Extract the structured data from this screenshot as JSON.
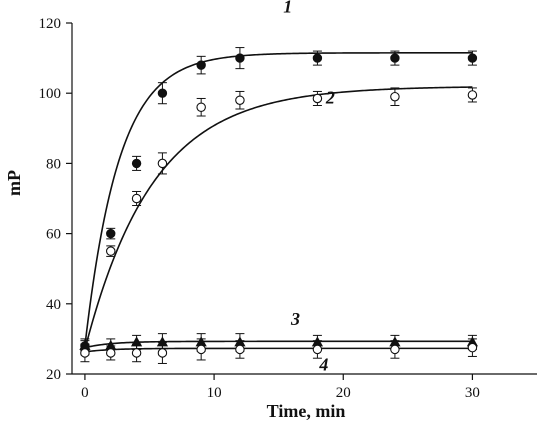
{
  "chart_data": {
    "type": "scatter",
    "title": "",
    "xlabel": "Time, min",
    "ylabel": "mP",
    "xlim": [
      -1,
      35
    ],
    "ylim": [
      20,
      120
    ],
    "xticks": [
      0,
      10,
      20,
      30
    ],
    "yticks": [
      20,
      40,
      60,
      80,
      100,
      120
    ],
    "x_tick_labels": [
      "0",
      "10",
      "20",
      "30"
    ],
    "y_tick_labels": [
      "20",
      "40",
      "60",
      "80",
      "100",
      "120"
    ],
    "grid": false,
    "legend": "none",
    "series": [
      {
        "name": "1",
        "marker": "filled-circle",
        "x": [
          0,
          2,
          4,
          6,
          9,
          12,
          18,
          24,
          30
        ],
        "y": [
          28,
          60,
          80,
          100,
          108,
          110,
          110,
          110,
          110
        ],
        "error": [
          1.5,
          1.5,
          2,
          3,
          2.5,
          3,
          2,
          2,
          2
        ],
        "fit": {
          "model": "exponential",
          "y0": 28,
          "ymax": 111.5,
          "k": 0.38
        },
        "label_position": [
          15.7,
          123
        ]
      },
      {
        "name": "2",
        "marker": "open-circle",
        "x": [
          0,
          2,
          4,
          6,
          9,
          12,
          18,
          24,
          30
        ],
        "y": [
          27,
          55,
          70,
          80,
          96,
          98,
          98.5,
          99,
          99.5
        ],
        "error": [
          1.5,
          1.5,
          2,
          3,
          2.5,
          2.5,
          2,
          2.5,
          2
        ],
        "fit": {
          "model": "exponential",
          "y0": 27,
          "ymax": 102,
          "k": 0.19
        },
        "label_position": [
          19,
          97
        ]
      },
      {
        "name": "3",
        "marker": "filled-triangle",
        "x": [
          0,
          2,
          4,
          6,
          9,
          12,
          18,
          24,
          30
        ],
        "y": [
          28,
          28,
          29,
          29,
          29,
          29,
          29,
          29,
          29
        ],
        "error": [
          2,
          2,
          2,
          2.5,
          2.5,
          2.5,
          2,
          2,
          2
        ],
        "fit": {
          "model": "exponential",
          "y0": 27.5,
          "ymax": 29.3,
          "k": 0.5
        },
        "label_position": [
          16.3,
          34
        ]
      },
      {
        "name": "4",
        "marker": "open-circle",
        "x": [
          0,
          2,
          4,
          6,
          9,
          12,
          18,
          24,
          30
        ],
        "y": [
          26,
          26,
          26,
          26,
          27,
          27,
          27,
          27,
          27.5
        ],
        "error": [
          2.5,
          2,
          2.5,
          3,
          3,
          2.5,
          2.5,
          2.5,
          2.5
        ],
        "fit": {
          "model": "exponential",
          "y0": 26.3,
          "ymax": 27.3,
          "k": 0.5
        },
        "label_position": [
          18.5,
          21
        ]
      }
    ]
  }
}
